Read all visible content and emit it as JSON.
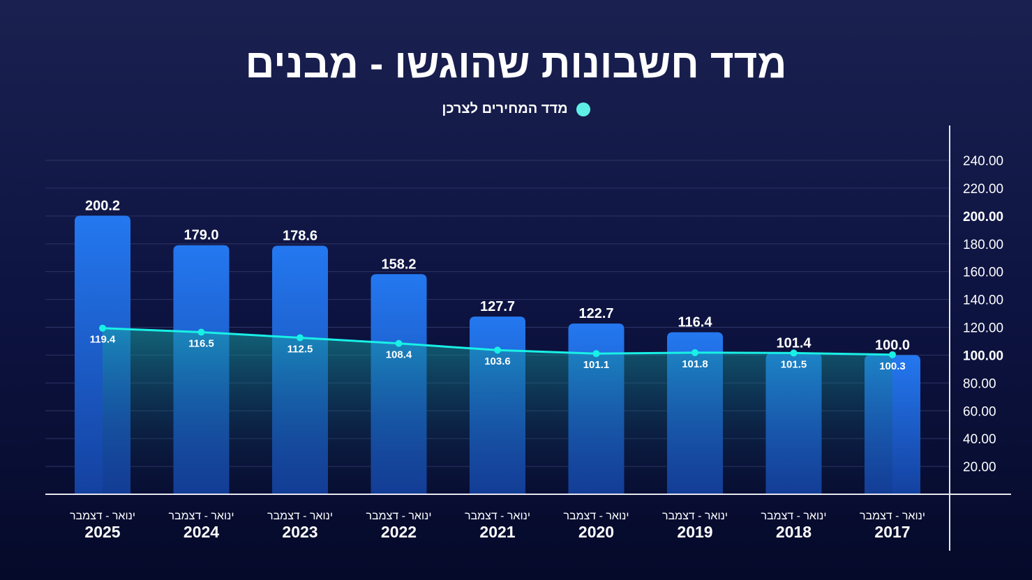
{
  "chart_data": {
    "type": "bar",
    "title": "מדד חשבונות שהוגשו - מבנים",
    "legend": [
      {
        "name": "מדד המחירים לצרכן",
        "color": "#5ef0e6"
      }
    ],
    "legend_placement": "top-center",
    "period_label": "ינואר - דצמבר",
    "categories": [
      "2025",
      "2024",
      "2023",
      "2022",
      "2021",
      "2020",
      "2019",
      "2018",
      "2017"
    ],
    "series": [
      {
        "name": "bars",
        "type": "bar",
        "values": [
          200.2,
          179.0,
          178.6,
          158.2,
          127.7,
          122.7,
          116.4,
          101.4,
          100.0
        ],
        "labels": [
          "200.2",
          "179.0",
          "178.6",
          "158.2",
          "127.7",
          "122.7",
          "116.4",
          "101.4",
          "100.0"
        ],
        "color": "#2477ee"
      },
      {
        "name": "מדד המחירים לצרכן",
        "type": "line",
        "values": [
          119.4,
          116.5,
          112.5,
          108.4,
          103.6,
          101.1,
          101.8,
          101.5,
          100.3
        ],
        "labels": [
          "119.4",
          "116.5",
          "112.5",
          "108.4",
          "103.6",
          "101.1",
          "101.8",
          "101.5",
          "100.3"
        ],
        "color": "#19f0e6"
      }
    ],
    "yaxis": {
      "position": "right",
      "ylim": [
        0,
        240
      ],
      "ticks": [
        "20.00",
        "40.00",
        "60.00",
        "80.00",
        "100.00",
        "120.00",
        "140.00",
        "160.00",
        "180.00",
        "200.00",
        "220.00",
        "240.00"
      ]
    },
    "grid": true
  }
}
